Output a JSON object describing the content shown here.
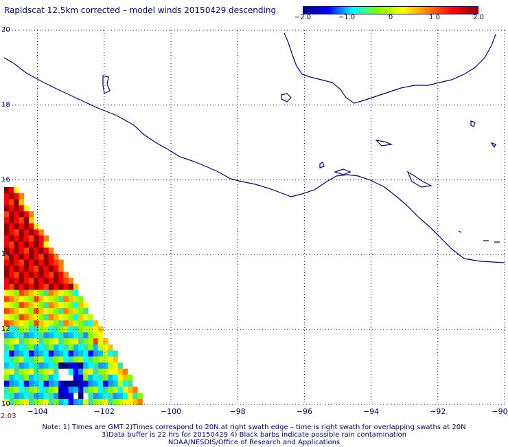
{
  "title": "Rapidscat 12.5km corrected – model winds 20150429 descending",
  "colorbar": {
    "ticks": [
      "−2.0",
      "−1.0",
      "0",
      "1.0",
      "2.0"
    ],
    "tick_values": [
      -2.0,
      -1.0,
      0,
      1.0,
      2.0
    ],
    "range": [
      -2.0,
      2.0
    ],
    "colors": [
      "#00008b",
      "#0000ff",
      "#00ffff",
      "#7fff00",
      "#ffff00",
      "#ff8000",
      "#ff0000",
      "#8b0000"
    ]
  },
  "axes": {
    "lat_labels": [
      "20",
      "18",
      "16",
      "14",
      "12",
      "10"
    ],
    "lat_values": [
      20,
      18,
      16,
      14,
      12,
      10
    ],
    "lon_labels": [
      "−104",
      "−102",
      "−100",
      "−98",
      "−96",
      "−94",
      "−92",
      "−90"
    ],
    "lon_values": [
      -104,
      -102,
      -100,
      -98,
      -96,
      -94,
      -92,
      -90
    ],
    "lon_range": [
      -105,
      -90
    ],
    "lat_range": [
      10,
      20
    ],
    "grid": "dotted"
  },
  "time_label": "2:03",
  "notes": [
    "Note: 1) Times are GMT 2)Times correspond to 20N at right swath edge – time is right swath for overlapping swaths at 20N",
    "3)Data buffer is 22 hrs for 20150429 4) Black barbs indicate possible rain contamination",
    "NOAA/NESDIS/Office of Research and Applications"
  ],
  "coast_color": "#000080",
  "grid_color": "#000080"
}
